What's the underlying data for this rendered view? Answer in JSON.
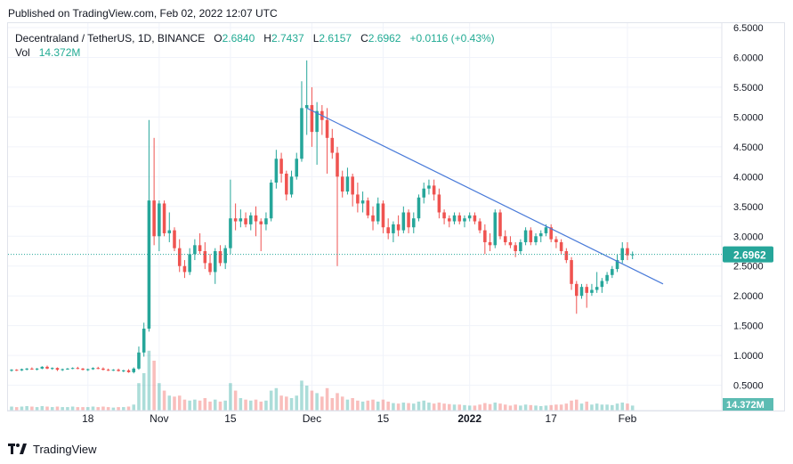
{
  "header": {
    "published": "Published on TradingView.com, Feb 02, 2022 12:07 UTC"
  },
  "legend": {
    "symbol": "Decentraland / TetherUS, 1D, BINANCE",
    "o_key": "O",
    "o_val": "2.6840",
    "h_key": "H",
    "h_val": "2.7437",
    "l_key": "L",
    "l_val": "2.6157",
    "c_key": "C",
    "c_val": "2.6962",
    "change": "+0.0116 (+0.43%)",
    "vol_key": "Vol",
    "vol_val": "14.372M"
  },
  "footer": {
    "brand": "TradingView"
  },
  "colors": {
    "up": "#26a69a",
    "down": "#ef5350",
    "trend": "#4a7bd9",
    "price_badge": "#26a69a",
    "grid": "#f0f3fa"
  },
  "chart_data": {
    "type": "candlestick",
    "price_tag": "2.6962",
    "volume_tag": "14.372M",
    "y_ticks": [
      "6.5000",
      "6.0000",
      "5.5000",
      "5.0000",
      "4.5000",
      "4.0000",
      "3.5000",
      "3.0000",
      "2.5000",
      "2.0000",
      "1.5000",
      "1.0000",
      "0.5000"
    ],
    "x_ticks": [
      {
        "label": "18",
        "date": "2021-10-18"
      },
      {
        "label": "Nov",
        "date": "2021-11-01"
      },
      {
        "label": "15",
        "date": "2021-11-15"
      },
      {
        "label": "Dec",
        "date": "2021-12-01"
      },
      {
        "label": "15",
        "date": "2021-12-15"
      },
      {
        "label": "2022",
        "date": "2022-01-01"
      },
      {
        "label": "17",
        "date": "2022-01-17"
      },
      {
        "label": "Feb",
        "date": "2022-02-01"
      }
    ],
    "ylim": [
      0.3,
      6.5
    ],
    "xlim": [
      "2021-10-03",
      "2022-02-08"
    ],
    "trendline": [
      {
        "date": "2021-11-30",
        "price": 5.15
      },
      {
        "date": "2022-02-08",
        "price": 2.2
      }
    ],
    "candles": [
      {
        "date": "2021-10-03",
        "o": 0.75,
        "h": 0.77,
        "l": 0.73,
        "c": 0.76,
        "v": 0.08
      },
      {
        "date": "2021-10-04",
        "o": 0.76,
        "h": 0.77,
        "l": 0.74,
        "c": 0.75,
        "v": 0.07
      },
      {
        "date": "2021-10-05",
        "o": 0.75,
        "h": 0.78,
        "l": 0.74,
        "c": 0.77,
        "v": 0.08
      },
      {
        "date": "2021-10-06",
        "o": 0.77,
        "h": 0.79,
        "l": 0.75,
        "c": 0.78,
        "v": 0.09
      },
      {
        "date": "2021-10-07",
        "o": 0.78,
        "h": 0.8,
        "l": 0.76,
        "c": 0.77,
        "v": 0.08
      },
      {
        "date": "2021-10-08",
        "o": 0.77,
        "h": 0.79,
        "l": 0.75,
        "c": 0.78,
        "v": 0.07
      },
      {
        "date": "2021-10-09",
        "o": 0.78,
        "h": 0.82,
        "l": 0.77,
        "c": 0.81,
        "v": 0.09
      },
      {
        "date": "2021-10-10",
        "o": 0.81,
        "h": 0.83,
        "l": 0.77,
        "c": 0.78,
        "v": 0.08
      },
      {
        "date": "2021-10-11",
        "o": 0.78,
        "h": 0.8,
        "l": 0.76,
        "c": 0.79,
        "v": 0.07
      },
      {
        "date": "2021-10-12",
        "o": 0.79,
        "h": 0.8,
        "l": 0.74,
        "c": 0.76,
        "v": 0.08
      },
      {
        "date": "2021-10-13",
        "o": 0.76,
        "h": 0.78,
        "l": 0.74,
        "c": 0.77,
        "v": 0.07
      },
      {
        "date": "2021-10-14",
        "o": 0.77,
        "h": 0.79,
        "l": 0.76,
        "c": 0.78,
        "v": 0.07
      },
      {
        "date": "2021-10-15",
        "o": 0.78,
        "h": 0.8,
        "l": 0.77,
        "c": 0.79,
        "v": 0.08
      },
      {
        "date": "2021-10-16",
        "o": 0.79,
        "h": 0.81,
        "l": 0.77,
        "c": 0.78,
        "v": 0.07
      },
      {
        "date": "2021-10-17",
        "o": 0.78,
        "h": 0.79,
        "l": 0.75,
        "c": 0.76,
        "v": 0.07
      },
      {
        "date": "2021-10-18",
        "o": 0.76,
        "h": 0.78,
        "l": 0.74,
        "c": 0.77,
        "v": 0.07
      },
      {
        "date": "2021-10-19",
        "o": 0.77,
        "h": 0.8,
        "l": 0.76,
        "c": 0.79,
        "v": 0.08
      },
      {
        "date": "2021-10-20",
        "o": 0.79,
        "h": 0.81,
        "l": 0.77,
        "c": 0.78,
        "v": 0.07
      },
      {
        "date": "2021-10-21",
        "o": 0.78,
        "h": 0.8,
        "l": 0.75,
        "c": 0.76,
        "v": 0.08
      },
      {
        "date": "2021-10-22",
        "o": 0.76,
        "h": 0.78,
        "l": 0.74,
        "c": 0.75,
        "v": 0.07
      },
      {
        "date": "2021-10-23",
        "o": 0.75,
        "h": 0.77,
        "l": 0.74,
        "c": 0.76,
        "v": 0.06
      },
      {
        "date": "2021-10-24",
        "o": 0.76,
        "h": 0.78,
        "l": 0.73,
        "c": 0.74,
        "v": 0.07
      },
      {
        "date": "2021-10-25",
        "o": 0.74,
        "h": 0.76,
        "l": 0.72,
        "c": 0.75,
        "v": 0.07
      },
      {
        "date": "2021-10-26",
        "o": 0.75,
        "h": 0.77,
        "l": 0.71,
        "c": 0.72,
        "v": 0.08
      },
      {
        "date": "2021-10-27",
        "o": 0.72,
        "h": 0.8,
        "l": 0.7,
        "c": 0.78,
        "v": 0.12
      },
      {
        "date": "2021-10-28",
        "o": 0.78,
        "h": 1.15,
        "l": 0.76,
        "c": 1.05,
        "v": 0.55
      },
      {
        "date": "2021-10-29",
        "o": 1.05,
        "h": 1.55,
        "l": 0.98,
        "c": 1.45,
        "v": 0.75
      },
      {
        "date": "2021-10-30",
        "o": 1.45,
        "h": 4.95,
        "l": 1.4,
        "c": 3.6,
        "v": 1.2
      },
      {
        "date": "2021-10-31",
        "o": 3.6,
        "h": 4.65,
        "l": 2.85,
        "c": 3.0,
        "v": 1.0
      },
      {
        "date": "2021-11-01",
        "o": 3.0,
        "h": 3.6,
        "l": 2.75,
        "c": 3.55,
        "v": 0.55
      },
      {
        "date": "2021-11-02",
        "o": 3.55,
        "h": 3.6,
        "l": 3.0,
        "c": 3.05,
        "v": 0.4
      },
      {
        "date": "2021-11-03",
        "o": 3.05,
        "h": 3.4,
        "l": 2.9,
        "c": 3.1,
        "v": 0.3
      },
      {
        "date": "2021-11-04",
        "o": 3.1,
        "h": 3.15,
        "l": 2.75,
        "c": 2.8,
        "v": 0.28
      },
      {
        "date": "2021-11-05",
        "o": 2.8,
        "h": 2.95,
        "l": 2.4,
        "c": 2.5,
        "v": 0.3
      },
      {
        "date": "2021-11-06",
        "o": 2.5,
        "h": 2.6,
        "l": 2.3,
        "c": 2.4,
        "v": 0.22
      },
      {
        "date": "2021-11-07",
        "o": 2.4,
        "h": 2.8,
        "l": 2.35,
        "c": 2.7,
        "v": 0.2
      },
      {
        "date": "2021-11-08",
        "o": 2.7,
        "h": 2.95,
        "l": 2.6,
        "c": 2.85,
        "v": 0.22
      },
      {
        "date": "2021-11-09",
        "o": 2.85,
        "h": 3.05,
        "l": 2.7,
        "c": 2.75,
        "v": 0.2
      },
      {
        "date": "2021-11-10",
        "o": 2.75,
        "h": 2.9,
        "l": 2.45,
        "c": 2.55,
        "v": 0.25
      },
      {
        "date": "2021-11-11",
        "o": 2.55,
        "h": 2.7,
        "l": 2.35,
        "c": 2.4,
        "v": 0.18
      },
      {
        "date": "2021-11-12",
        "o": 2.4,
        "h": 2.8,
        "l": 2.2,
        "c": 2.75,
        "v": 0.22
      },
      {
        "date": "2021-11-13",
        "o": 2.75,
        "h": 2.85,
        "l": 2.5,
        "c": 2.55,
        "v": 0.18
      },
      {
        "date": "2021-11-14",
        "o": 2.55,
        "h": 2.85,
        "l": 2.45,
        "c": 2.8,
        "v": 0.2
      },
      {
        "date": "2021-11-15",
        "o": 2.8,
        "h": 3.95,
        "l": 2.7,
        "c": 3.3,
        "v": 0.55
      },
      {
        "date": "2021-11-16",
        "o": 3.3,
        "h": 3.55,
        "l": 3.1,
        "c": 3.25,
        "v": 0.4
      },
      {
        "date": "2021-11-17",
        "o": 3.25,
        "h": 3.45,
        "l": 3.15,
        "c": 3.3,
        "v": 0.25
      },
      {
        "date": "2021-11-18",
        "o": 3.3,
        "h": 3.4,
        "l": 3.15,
        "c": 3.2,
        "v": 0.22
      },
      {
        "date": "2021-11-19",
        "o": 3.2,
        "h": 3.4,
        "l": 3.1,
        "c": 3.35,
        "v": 0.2
      },
      {
        "date": "2021-11-20",
        "o": 3.35,
        "h": 3.5,
        "l": 3.0,
        "c": 3.25,
        "v": 0.22
      },
      {
        "date": "2021-11-21",
        "o": 3.25,
        "h": 3.3,
        "l": 2.75,
        "c": 3.2,
        "v": 0.18
      },
      {
        "date": "2021-11-22",
        "o": 3.2,
        "h": 3.4,
        "l": 3.1,
        "c": 3.3,
        "v": 0.2
      },
      {
        "date": "2021-11-23",
        "o": 3.3,
        "h": 3.95,
        "l": 3.25,
        "c": 3.9,
        "v": 0.4
      },
      {
        "date": "2021-11-24",
        "o": 3.9,
        "h": 4.45,
        "l": 3.8,
        "c": 4.3,
        "v": 0.45
      },
      {
        "date": "2021-11-25",
        "o": 4.3,
        "h": 4.4,
        "l": 3.9,
        "c": 4.05,
        "v": 0.3
      },
      {
        "date": "2021-11-26",
        "o": 4.05,
        "h": 4.1,
        "l": 3.6,
        "c": 3.7,
        "v": 0.28
      },
      {
        "date": "2021-11-27",
        "o": 3.7,
        "h": 4.1,
        "l": 3.65,
        "c": 4.0,
        "v": 0.25
      },
      {
        "date": "2021-11-28",
        "o": 4.0,
        "h": 4.4,
        "l": 3.95,
        "c": 4.3,
        "v": 0.3
      },
      {
        "date": "2021-11-29",
        "o": 4.3,
        "h": 5.6,
        "l": 4.25,
        "c": 5.15,
        "v": 0.6
      },
      {
        "date": "2021-11-30",
        "o": 5.15,
        "h": 5.95,
        "l": 4.7,
        "c": 5.2,
        "v": 0.5
      },
      {
        "date": "2021-12-01",
        "o": 5.2,
        "h": 5.5,
        "l": 4.5,
        "c": 4.75,
        "v": 0.4
      },
      {
        "date": "2021-12-02",
        "o": 4.75,
        "h": 5.25,
        "l": 4.2,
        "c": 5.1,
        "v": 0.35
      },
      {
        "date": "2021-12-03",
        "o": 5.1,
        "h": 5.2,
        "l": 4.7,
        "c": 4.95,
        "v": 0.28
      },
      {
        "date": "2021-12-04",
        "o": 4.95,
        "h": 5.15,
        "l": 4.05,
        "c": 4.65,
        "v": 0.45
      },
      {
        "date": "2021-12-05",
        "o": 4.65,
        "h": 4.8,
        "l": 4.3,
        "c": 4.4,
        "v": 0.25
      },
      {
        "date": "2021-12-06",
        "o": 4.4,
        "h": 4.5,
        "l": 2.5,
        "c": 4.0,
        "v": 0.35
      },
      {
        "date": "2021-12-07",
        "o": 4.0,
        "h": 4.1,
        "l": 3.65,
        "c": 3.75,
        "v": 0.28
      },
      {
        "date": "2021-12-08",
        "o": 3.75,
        "h": 4.15,
        "l": 3.7,
        "c": 4.0,
        "v": 0.22
      },
      {
        "date": "2021-12-09",
        "o": 4.0,
        "h": 4.05,
        "l": 3.5,
        "c": 3.7,
        "v": 0.25
      },
      {
        "date": "2021-12-10",
        "o": 3.7,
        "h": 3.9,
        "l": 3.4,
        "c": 3.55,
        "v": 0.2
      },
      {
        "date": "2021-12-11",
        "o": 3.55,
        "h": 3.75,
        "l": 3.4,
        "c": 3.6,
        "v": 0.18
      },
      {
        "date": "2021-12-12",
        "o": 3.6,
        "h": 3.65,
        "l": 3.3,
        "c": 3.35,
        "v": 0.2
      },
      {
        "date": "2021-12-13",
        "o": 3.35,
        "h": 3.5,
        "l": 3.1,
        "c": 3.25,
        "v": 0.22
      },
      {
        "date": "2021-12-14",
        "o": 3.25,
        "h": 3.65,
        "l": 3.2,
        "c": 3.55,
        "v": 0.18
      },
      {
        "date": "2021-12-15",
        "o": 3.55,
        "h": 3.6,
        "l": 3.05,
        "c": 3.15,
        "v": 0.22
      },
      {
        "date": "2021-12-16",
        "o": 3.15,
        "h": 3.3,
        "l": 2.95,
        "c": 3.05,
        "v": 0.18
      },
      {
        "date": "2021-12-17",
        "o": 3.05,
        "h": 3.25,
        "l": 2.9,
        "c": 3.2,
        "v": 0.15
      },
      {
        "date": "2021-12-18",
        "o": 3.2,
        "h": 3.35,
        "l": 3.0,
        "c": 3.1,
        "v": 0.14
      },
      {
        "date": "2021-12-19",
        "o": 3.1,
        "h": 3.5,
        "l": 3.05,
        "c": 3.4,
        "v": 0.16
      },
      {
        "date": "2021-12-20",
        "o": 3.4,
        "h": 3.45,
        "l": 3.05,
        "c": 3.15,
        "v": 0.15
      },
      {
        "date": "2021-12-21",
        "o": 3.15,
        "h": 3.4,
        "l": 3.05,
        "c": 3.3,
        "v": 0.14
      },
      {
        "date": "2021-12-22",
        "o": 3.3,
        "h": 3.7,
        "l": 3.25,
        "c": 3.65,
        "v": 0.18
      },
      {
        "date": "2021-12-23",
        "o": 3.65,
        "h": 3.9,
        "l": 3.55,
        "c": 3.8,
        "v": 0.2
      },
      {
        "date": "2021-12-24",
        "o": 3.8,
        "h": 3.95,
        "l": 3.7,
        "c": 3.85,
        "v": 0.16
      },
      {
        "date": "2021-12-25",
        "o": 3.85,
        "h": 3.95,
        "l": 3.6,
        "c": 3.7,
        "v": 0.14
      },
      {
        "date": "2021-12-26",
        "o": 3.7,
        "h": 3.8,
        "l": 3.3,
        "c": 3.4,
        "v": 0.16
      },
      {
        "date": "2021-12-27",
        "o": 3.4,
        "h": 3.45,
        "l": 3.2,
        "c": 3.3,
        "v": 0.14
      },
      {
        "date": "2021-12-28",
        "o": 3.3,
        "h": 3.35,
        "l": 3.15,
        "c": 3.25,
        "v": 0.13
      },
      {
        "date": "2021-12-29",
        "o": 3.25,
        "h": 3.4,
        "l": 3.2,
        "c": 3.35,
        "v": 0.12
      },
      {
        "date": "2021-12-30",
        "o": 3.35,
        "h": 3.4,
        "l": 3.2,
        "c": 3.25,
        "v": 0.12
      },
      {
        "date": "2021-12-31",
        "o": 3.25,
        "h": 3.35,
        "l": 3.15,
        "c": 3.3,
        "v": 0.11
      },
      {
        "date": "2022-01-01",
        "o": 3.3,
        "h": 3.4,
        "l": 3.25,
        "c": 3.35,
        "v": 0.1
      },
      {
        "date": "2022-01-02",
        "o": 3.35,
        "h": 3.4,
        "l": 3.2,
        "c": 3.25,
        "v": 0.1
      },
      {
        "date": "2022-01-03",
        "o": 3.25,
        "h": 3.3,
        "l": 3.05,
        "c": 3.1,
        "v": 0.12
      },
      {
        "date": "2022-01-04",
        "o": 3.1,
        "h": 3.2,
        "l": 2.7,
        "c": 2.9,
        "v": 0.15
      },
      {
        "date": "2022-01-05",
        "o": 2.9,
        "h": 3.05,
        "l": 2.75,
        "c": 2.85,
        "v": 0.13
      },
      {
        "date": "2022-01-06",
        "o": 2.85,
        "h": 3.45,
        "l": 2.8,
        "c": 3.4,
        "v": 0.16
      },
      {
        "date": "2022-01-07",
        "o": 3.4,
        "h": 3.45,
        "l": 2.95,
        "c": 3.0,
        "v": 0.14
      },
      {
        "date": "2022-01-08",
        "o": 3.0,
        "h": 3.1,
        "l": 2.85,
        "c": 2.9,
        "v": 0.12
      },
      {
        "date": "2022-01-09",
        "o": 2.9,
        "h": 3.0,
        "l": 2.8,
        "c": 2.85,
        "v": 0.1
      },
      {
        "date": "2022-01-10",
        "o": 2.85,
        "h": 2.9,
        "l": 2.65,
        "c": 2.75,
        "v": 0.12
      },
      {
        "date": "2022-01-11",
        "o": 2.75,
        "h": 2.95,
        "l": 2.7,
        "c": 2.9,
        "v": 0.1
      },
      {
        "date": "2022-01-12",
        "o": 2.9,
        "h": 3.15,
        "l": 2.85,
        "c": 3.1,
        "v": 0.12
      },
      {
        "date": "2022-01-13",
        "o": 3.1,
        "h": 3.15,
        "l": 2.85,
        "c": 2.9,
        "v": 0.11
      },
      {
        "date": "2022-01-14",
        "o": 2.9,
        "h": 3.05,
        "l": 2.85,
        "c": 3.0,
        "v": 0.1
      },
      {
        "date": "2022-01-15",
        "o": 3.0,
        "h": 3.1,
        "l": 2.9,
        "c": 3.05,
        "v": 0.09
      },
      {
        "date": "2022-01-16",
        "o": 3.05,
        "h": 3.2,
        "l": 3.0,
        "c": 3.15,
        "v": 0.1
      },
      {
        "date": "2022-01-17",
        "o": 3.15,
        "h": 3.2,
        "l": 2.9,
        "c": 2.95,
        "v": 0.11
      },
      {
        "date": "2022-01-18",
        "o": 2.95,
        "h": 3.0,
        "l": 2.8,
        "c": 2.9,
        "v": 0.12
      },
      {
        "date": "2022-01-19",
        "o": 2.9,
        "h": 2.95,
        "l": 2.7,
        "c": 2.75,
        "v": 0.12
      },
      {
        "date": "2022-01-20",
        "o": 2.75,
        "h": 2.8,
        "l": 2.55,
        "c": 2.6,
        "v": 0.14
      },
      {
        "date": "2022-01-21",
        "o": 2.6,
        "h": 2.65,
        "l": 2.1,
        "c": 2.2,
        "v": 0.2
      },
      {
        "date": "2022-01-22",
        "o": 2.2,
        "h": 2.25,
        "l": 1.7,
        "c": 2.0,
        "v": 0.22
      },
      {
        "date": "2022-01-23",
        "o": 2.0,
        "h": 2.2,
        "l": 1.95,
        "c": 2.15,
        "v": 0.14
      },
      {
        "date": "2022-01-24",
        "o": 2.15,
        "h": 2.2,
        "l": 1.8,
        "c": 2.05,
        "v": 0.18
      },
      {
        "date": "2022-01-25",
        "o": 2.05,
        "h": 2.2,
        "l": 2.0,
        "c": 2.1,
        "v": 0.12
      },
      {
        "date": "2022-01-26",
        "o": 2.1,
        "h": 2.4,
        "l": 2.05,
        "c": 2.15,
        "v": 0.14
      },
      {
        "date": "2022-01-27",
        "o": 2.15,
        "h": 2.3,
        "l": 2.05,
        "c": 2.25,
        "v": 0.12
      },
      {
        "date": "2022-01-28",
        "o": 2.25,
        "h": 2.4,
        "l": 2.2,
        "c": 2.35,
        "v": 0.12
      },
      {
        "date": "2022-01-29",
        "o": 2.35,
        "h": 2.5,
        "l": 2.3,
        "c": 2.45,
        "v": 0.11
      },
      {
        "date": "2022-01-30",
        "o": 2.45,
        "h": 2.7,
        "l": 2.4,
        "c": 2.6,
        "v": 0.14
      },
      {
        "date": "2022-01-31",
        "o": 2.6,
        "h": 2.9,
        "l": 2.55,
        "c": 2.8,
        "v": 0.16
      },
      {
        "date": "2022-02-01",
        "o": 2.8,
        "h": 2.9,
        "l": 2.6,
        "c": 2.68,
        "v": 0.14
      },
      {
        "date": "2022-02-02",
        "o": 2.684,
        "h": 2.7437,
        "l": 2.6157,
        "c": 2.6962,
        "v": 0.1
      }
    ]
  }
}
